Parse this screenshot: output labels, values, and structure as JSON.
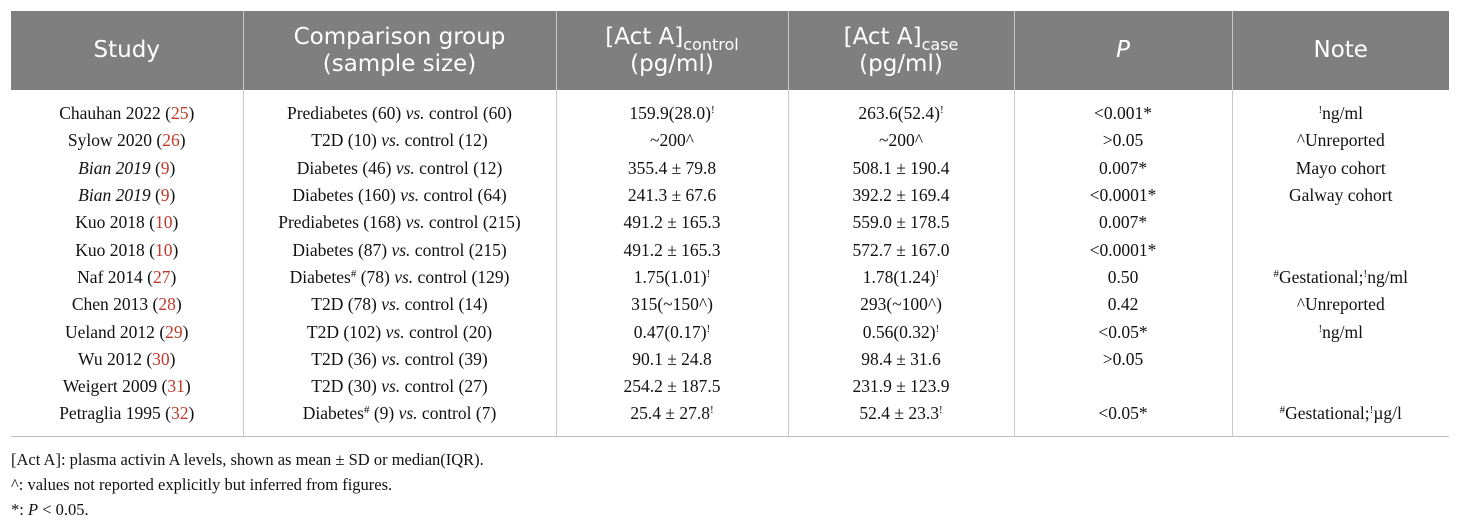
{
  "header": {
    "study": "Study",
    "comparison_line1": "Comparison group",
    "comparison_line2": "(sample size)",
    "control_base": "[Act A]",
    "control_sub": "control",
    "control_unit": "(pg/ml)",
    "case_base": "[Act A]",
    "case_sub": "case",
    "case_unit": "(pg/ml)",
    "p": "P",
    "note": "Note"
  },
  "rows": [
    {
      "study": "Chauhan 2022",
      "study_italic": false,
      "ref": "25",
      "group1": "Prediabetes",
      "group1_mark": "",
      "group1_n": "(60)",
      "vs": "vs.",
      "group2": "control (60)",
      "control": "159.9(28.0)",
      "control_mark": "!",
      "case": "263.6(52.4)",
      "case_mark": "!",
      "p": "<0.001*",
      "note_mark1": "!",
      "note_text1": "ng/ml",
      "note_mark2": "",
      "note_text2": ""
    },
    {
      "study": "Sylow 2020",
      "study_italic": false,
      "ref": "26",
      "group1": "T2D",
      "group1_mark": "",
      "group1_n": "(10)",
      "vs": "vs.",
      "group2": "control (12)",
      "control": "~200^",
      "control_mark": "",
      "case": "~200^",
      "case_mark": "",
      "p": ">0.05",
      "note_mark1": "",
      "note_text1": "^Unreported",
      "note_mark2": "",
      "note_text2": ""
    },
    {
      "study": "Bian 2019",
      "study_italic": true,
      "ref": "9",
      "group1": "Diabetes",
      "group1_mark": "",
      "group1_n": "(46)",
      "vs": "vs.",
      "group2": "control (12)",
      "control": "355.4 ± 79.8",
      "control_mark": "",
      "case": "508.1 ± 190.4",
      "case_mark": "",
      "p": "0.007*",
      "note_mark1": "",
      "note_text1": "Mayo cohort",
      "note_mark2": "",
      "note_text2": ""
    },
    {
      "study": "Bian 2019",
      "study_italic": true,
      "ref": "9",
      "group1": "Diabetes",
      "group1_mark": "",
      "group1_n": "(160)",
      "vs": "vs.",
      "group2": "control (64)",
      "control": "241.3 ± 67.6",
      "control_mark": "",
      "case": "392.2 ± 169.4",
      "case_mark": "",
      "p": "<0.0001*",
      "note_mark1": "",
      "note_text1": "Galway cohort",
      "note_mark2": "",
      "note_text2": ""
    },
    {
      "study": "Kuo 2018",
      "study_italic": false,
      "ref": "10",
      "group1": "Prediabetes",
      "group1_mark": "",
      "group1_n": "(168)",
      "vs": "vs.",
      "group2": "control (215)",
      "control": "491.2 ± 165.3",
      "control_mark": "",
      "case": "559.0 ± 178.5",
      "case_mark": "",
      "p": "0.007*",
      "note_mark1": "",
      "note_text1": "",
      "note_mark2": "",
      "note_text2": ""
    },
    {
      "study": "Kuo 2018",
      "study_italic": false,
      "ref": "10",
      "group1": "Diabetes",
      "group1_mark": "",
      "group1_n": "(87)",
      "vs": "vs.",
      "group2": "control (215)",
      "control": "491.2 ± 165.3",
      "control_mark": "",
      "case": "572.7 ± 167.0",
      "case_mark": "",
      "p": "<0.0001*",
      "note_mark1": "",
      "note_text1": "",
      "note_mark2": "",
      "note_text2": ""
    },
    {
      "study": "Naf 2014",
      "study_italic": false,
      "ref": "27",
      "group1": "Diabetes",
      "group1_mark": "#",
      "group1_n": "(78)",
      "vs": "vs.",
      "group2": "control (129)",
      "control": "1.75(1.01)",
      "control_mark": "!",
      "case": "1.78(1.24)",
      "case_mark": "!",
      "p": "0.50",
      "note_mark1": "#",
      "note_text1": "Gestational;",
      "note_mark2": "!",
      "note_text2": "ng/ml"
    },
    {
      "study": "Chen 2013",
      "study_italic": false,
      "ref": "28",
      "group1": "T2D",
      "group1_mark": "",
      "group1_n": "(78)",
      "vs": "vs.",
      "group2": "control (14)",
      "control": "315(~150^)",
      "control_mark": "",
      "case": "293(~100^)",
      "case_mark": "",
      "p": "0.42",
      "note_mark1": "",
      "note_text1": "^Unreported",
      "note_mark2": "",
      "note_text2": ""
    },
    {
      "study": "Ueland 2012",
      "study_italic": false,
      "ref": "29",
      "group1": "T2D",
      "group1_mark": "",
      "group1_n": "(102)",
      "vs": "vs.",
      "group2": "control (20)",
      "control": "0.47(0.17)",
      "control_mark": "!",
      "case": "0.56(0.32)",
      "case_mark": "!",
      "p": "<0.05*",
      "note_mark1": "!",
      "note_text1": "ng/ml",
      "note_mark2": "",
      "note_text2": ""
    },
    {
      "study": "Wu 2012",
      "study_italic": false,
      "ref": "30",
      "group1": "T2D",
      "group1_mark": "",
      "group1_n": "(36)",
      "vs": "vs.",
      "group2": "control (39)",
      "control": "90.1 ± 24.8",
      "control_mark": "",
      "case": "98.4 ± 31.6",
      "case_mark": "",
      "p": ">0.05",
      "note_mark1": "",
      "note_text1": "",
      "note_mark2": "",
      "note_text2": ""
    },
    {
      "study": "Weigert 2009",
      "study_italic": false,
      "ref": "31",
      "group1": "T2D",
      "group1_mark": "",
      "group1_n": "(30)",
      "vs": "vs.",
      "group2": "control (27)",
      "control": "254.2 ± 187.5",
      "control_mark": "",
      "case": "231.9 ± 123.9",
      "case_mark": "",
      "p": "",
      "note_mark1": "",
      "note_text1": "",
      "note_mark2": "",
      "note_text2": ""
    },
    {
      "study": "Petraglia 1995",
      "study_italic": false,
      "ref": "32",
      "group1": "Diabetes",
      "group1_mark": "#",
      "group1_n": "(9)",
      "vs": "vs.",
      "group2": "control (7)",
      "control": "25.4 ± 27.8",
      "control_mark": "!",
      "case": "52.4 ± 23.3",
      "case_mark": "!",
      "p": "<0.05*",
      "note_mark1": "#",
      "note_text1": "Gestational;",
      "note_mark2": "!",
      "note_text2": "µg/l"
    }
  ],
  "footnotes": {
    "line1": "[Act A]: plasma activin A levels, shown as mean ± SD or median(IQR).",
    "line2": "^: values not reported explicitly but inferred from figures.",
    "line3_prefix": "*: ",
    "line3_p": "P",
    "line3_suffix": " < 0.05."
  }
}
